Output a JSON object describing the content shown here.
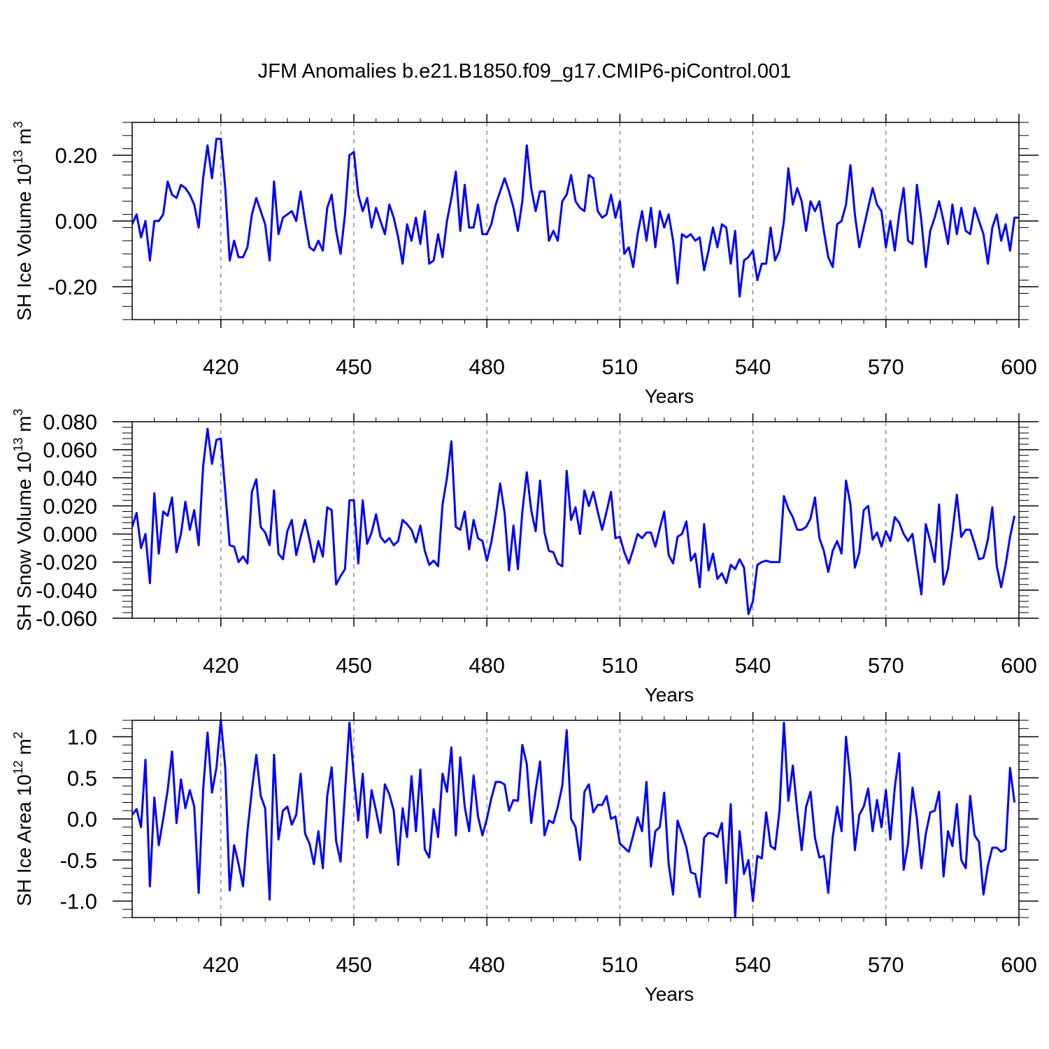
{
  "figure": {
    "title": "JFM Anomalies b.e21.B1850.f09_g17.CMIP6-piControl.001"
  },
  "colors": {
    "line": "#0000ff",
    "axis": "#000000",
    "grid": "#777777"
  },
  "chart_data": [
    {
      "type": "line",
      "title": "",
      "xlabel": "Years",
      "ylabel_main": "SH Ice Volume 10",
      "ylabel_exp": "13",
      "ylabel_unit": " m",
      "ylabel_unit_exp": "3",
      "xlim": [
        400,
        600
      ],
      "ylim": [
        -0.3,
        0.3
      ],
      "xticks": [
        420,
        450,
        480,
        510,
        540,
        570,
        600
      ],
      "xtick_labels": [
        "420",
        "450",
        "480",
        "510",
        "540",
        "570",
        "600"
      ],
      "yticks": [
        -0.2,
        0.0,
        0.2
      ],
      "ytick_labels": [
        "-0.20",
        "0.00",
        "0.20"
      ],
      "x_start": 400,
      "series": [
        {
          "name": "SH Ice Volume",
          "values": [
            -0.01,
            0.02,
            -0.05,
            0.0,
            -0.12,
            0.0,
            0.0,
            0.02,
            0.12,
            0.08,
            0.07,
            0.11,
            0.1,
            0.08,
            0.05,
            -0.02,
            0.13,
            0.23,
            0.13,
            0.25,
            0.25,
            0.1,
            -0.12,
            -0.06,
            -0.11,
            -0.11,
            -0.08,
            0.02,
            0.07,
            0.03,
            -0.01,
            -0.12,
            0.12,
            -0.04,
            0.01,
            0.02,
            0.03,
            0.0,
            0.09,
            0.0,
            -0.08,
            -0.09,
            -0.06,
            -0.09,
            0.04,
            0.08,
            -0.03,
            -0.1,
            0.02,
            0.2,
            0.21,
            0.08,
            0.03,
            0.07,
            -0.02,
            0.04,
            0.0,
            -0.04,
            0.05,
            0.01,
            -0.05,
            -0.13,
            -0.01,
            -0.06,
            0.01,
            -0.07,
            0.03,
            -0.13,
            -0.12,
            -0.04,
            -0.11,
            0.0,
            0.07,
            0.15,
            -0.03,
            0.11,
            -0.02,
            -0.02,
            0.05,
            -0.04,
            -0.04,
            -0.01,
            0.05,
            0.09,
            0.13,
            0.09,
            0.04,
            -0.03,
            0.06,
            0.23,
            0.1,
            0.03,
            0.09,
            0.09,
            -0.06,
            -0.03,
            -0.06,
            0.06,
            0.08,
            0.14,
            0.06,
            0.04,
            0.03,
            0.14,
            0.13,
            0.03,
            0.01,
            0.02,
            0.08,
            0.01,
            0.06,
            -0.1,
            -0.08,
            -0.14,
            -0.04,
            0.03,
            -0.06,
            0.04,
            -0.08,
            0.03,
            -0.02,
            0.02,
            -0.06,
            -0.19,
            -0.04,
            -0.05,
            -0.04,
            -0.06,
            -0.05,
            -0.15,
            -0.09,
            -0.02,
            -0.08,
            -0.01,
            -0.02,
            -0.13,
            -0.03,
            -0.23,
            -0.12,
            -0.11,
            -0.09,
            -0.18,
            -0.13,
            -0.13,
            -0.02,
            -0.12,
            -0.09,
            0.0,
            0.16,
            0.05,
            0.1,
            0.06,
            -0.03,
            0.06,
            0.03,
            0.06,
            -0.03,
            -0.11,
            -0.14,
            -0.01,
            0.0,
            0.05,
            0.17,
            0.02,
            -0.08,
            -0.02,
            0.04,
            0.1,
            0.05,
            0.03,
            -0.08,
            0.0,
            -0.09,
            0.02,
            0.1,
            -0.06,
            -0.07,
            0.11,
            0.0,
            -0.14,
            -0.03,
            0.01,
            0.06,
            0.0,
            -0.07,
            0.05,
            -0.04,
            0.04,
            -0.03,
            -0.04,
            0.04,
            0.0,
            -0.04,
            -0.13,
            -0.02,
            0.02,
            -0.06,
            -0.01,
            -0.09,
            0.01,
            0.01
          ]
        }
      ]
    },
    {
      "type": "line",
      "title": "",
      "xlabel": "Years",
      "ylabel_main": "SH Snow Volume 10",
      "ylabel_exp": "13",
      "ylabel_unit": " m",
      "ylabel_unit_exp": "3",
      "xlim": [
        400,
        600
      ],
      "ylim": [
        -0.06,
        0.08
      ],
      "xticks": [
        420,
        450,
        480,
        510,
        540,
        570,
        600
      ],
      "xtick_labels": [
        "420",
        "450",
        "480",
        "510",
        "540",
        "570",
        "600"
      ],
      "yticks": [
        -0.06,
        -0.04,
        -0.02,
        0.0,
        0.02,
        0.04,
        0.06,
        0.08
      ],
      "ytick_labels": [
        "-0.060",
        "-0.040",
        "-0.020",
        "0.000",
        "0.020",
        "0.040",
        "0.060",
        "0.080"
      ],
      "x_start": 400,
      "series": [
        {
          "name": "SH Snow Volume",
          "values": [
            0.005,
            0.015,
            -0.01,
            0.0,
            -0.035,
            0.029,
            -0.014,
            0.016,
            0.013,
            0.026,
            -0.013,
            0.0,
            0.023,
            0.003,
            0.017,
            -0.008,
            0.048,
            0.075,
            0.05,
            0.067,
            0.068,
            0.03,
            -0.008,
            -0.009,
            -0.02,
            -0.016,
            -0.021,
            0.03,
            0.039,
            0.005,
            0.001,
            -0.008,
            0.031,
            -0.014,
            -0.018,
            0.002,
            0.01,
            -0.015,
            -0.002,
            0.01,
            -0.004,
            -0.02,
            -0.005,
            -0.016,
            0.019,
            0.017,
            -0.036,
            -0.03,
            -0.025,
            0.024,
            0.024,
            -0.021,
            0.024,
            -0.007,
            0.001,
            0.014,
            -0.002,
            -0.006,
            -0.003,
            -0.008,
            -0.005,
            0.01,
            0.007,
            0.003,
            -0.006,
            0.006,
            -0.012,
            -0.022,
            -0.019,
            -0.023,
            0.021,
            0.04,
            0.066,
            0.005,
            0.003,
            0.016,
            -0.011,
            0.01,
            -0.003,
            -0.005,
            -0.019,
            -0.006,
            0.013,
            0.036,
            0.015,
            -0.026,
            0.006,
            -0.025,
            0.016,
            0.044,
            0.017,
            0.002,
            0.038,
            0.001,
            -0.012,
            -0.013,
            -0.021,
            -0.023,
            0.045,
            0.01,
            0.019,
            0.0,
            0.031,
            0.02,
            0.03,
            0.016,
            0.003,
            0.016,
            0.03,
            -0.003,
            -0.002,
            -0.013,
            -0.021,
            -0.011,
            0.0,
            -0.003,
            0.001,
            0.001,
            -0.009,
            0.004,
            0.016,
            -0.015,
            -0.021,
            -0.002,
            0.0,
            0.009,
            -0.019,
            -0.014,
            -0.038,
            0.007,
            -0.026,
            -0.014,
            -0.032,
            -0.028,
            -0.035,
            -0.022,
            -0.025,
            -0.018,
            -0.024,
            -0.057,
            -0.048,
            -0.022,
            -0.02,
            -0.019,
            -0.02,
            -0.02,
            -0.02,
            0.027,
            0.018,
            0.012,
            0.003,
            0.003,
            0.005,
            0.011,
            0.026,
            -0.003,
            -0.012,
            -0.027,
            -0.012,
            -0.005,
            -0.014,
            0.038,
            0.021,
            -0.024,
            -0.013,
            0.017,
            0.02,
            -0.004,
            0.001,
            -0.009,
            0.002,
            -0.005,
            0.012,
            0.008,
            0.0,
            -0.005,
            0.0,
            -0.022,
            -0.043,
            0.007,
            -0.005,
            -0.02,
            0.021,
            -0.036,
            -0.025,
            0.001,
            0.028,
            -0.002,
            0.003,
            0.003,
            -0.007,
            -0.018,
            -0.017,
            -0.004,
            0.019,
            -0.023,
            -0.038,
            -0.022,
            -0.002,
            0.013
          ]
        }
      ]
    },
    {
      "type": "line",
      "title": "",
      "xlabel": "Years",
      "ylabel_main": "SH Ice Area 10",
      "ylabel_exp": "12",
      "ylabel_unit": " m",
      "ylabel_unit_exp": "2",
      "xlim": [
        400,
        600
      ],
      "ylim": [
        -1.2,
        1.2
      ],
      "xticks": [
        420,
        450,
        480,
        510,
        540,
        570,
        600
      ],
      "xtick_labels": [
        "420",
        "450",
        "480",
        "510",
        "540",
        "570",
        "600"
      ],
      "yticks": [
        -1.0,
        -0.5,
        0.0,
        0.5,
        1.0
      ],
      "ytick_labels": [
        "-1.0",
        "-0.5",
        "0.0",
        "0.5",
        "1.0"
      ],
      "x_start": 400,
      "series": [
        {
          "name": "SH Ice Area",
          "values": [
            0.05,
            0.12,
            -0.1,
            0.72,
            -0.82,
            0.26,
            -0.32,
            0.0,
            0.35,
            0.82,
            -0.05,
            0.48,
            0.13,
            0.35,
            0.15,
            -0.9,
            0.35,
            1.05,
            0.32,
            0.62,
            1.2,
            0.62,
            -0.87,
            -0.32,
            -0.55,
            -0.82,
            -0.15,
            0.35,
            0.78,
            0.28,
            0.13,
            -0.98,
            0.78,
            -0.25,
            0.1,
            0.15,
            -0.07,
            0.05,
            0.55,
            -0.18,
            -0.3,
            -0.55,
            -0.15,
            -0.6,
            0.28,
            0.63,
            -0.27,
            -0.52,
            0.32,
            1.17,
            0.52,
            -0.02,
            0.55,
            -0.23,
            0.35,
            0.1,
            -0.17,
            0.42,
            0.3,
            0.1,
            -0.56,
            0.13,
            -0.22,
            0.52,
            -0.15,
            0.6,
            -0.37,
            -0.47,
            0.12,
            -0.22,
            0.55,
            0.33,
            0.87,
            -0.2,
            0.75,
            0.15,
            -0.15,
            0.53,
            0.03,
            -0.2,
            0.0,
            0.25,
            0.45,
            0.45,
            0.42,
            0.1,
            0.23,
            0.22,
            0.9,
            0.67,
            -0.05,
            0.35,
            0.7,
            -0.2,
            -0.02,
            -0.05,
            0.15,
            0.4,
            1.08,
            0.0,
            -0.1,
            -0.5,
            0.33,
            0.42,
            0.08,
            0.17,
            0.17,
            0.28,
            0.0,
            0.03,
            -0.3,
            -0.35,
            -0.4,
            -0.2,
            0.02,
            -0.15,
            0.45,
            -0.58,
            -0.15,
            -0.1,
            0.32,
            -0.55,
            -0.92,
            -0.02,
            -0.18,
            -0.35,
            -0.65,
            -0.67,
            -0.95,
            -0.23,
            -0.17,
            -0.18,
            -0.22,
            -0.05,
            -0.78,
            0.18,
            -1.2,
            -0.15,
            -0.67,
            -0.5,
            -1.0,
            -0.45,
            -0.48,
            0.08,
            -0.33,
            -0.37,
            0.1,
            1.17,
            0.22,
            0.65,
            0.1,
            -0.38,
            0.15,
            0.33,
            -0.23,
            -0.47,
            -0.45,
            -0.9,
            -0.22,
            0.15,
            -0.15,
            1.0,
            0.48,
            -0.38,
            0.05,
            0.15,
            0.37,
            -0.15,
            0.23,
            -0.1,
            0.35,
            -0.25,
            0.38,
            0.8,
            -0.62,
            -0.3,
            0.38,
            0.0,
            -0.6,
            -0.18,
            0.08,
            0.1,
            0.33,
            -0.7,
            -0.15,
            -0.33,
            0.18,
            -0.5,
            -0.6,
            0.28,
            -0.2,
            -0.28,
            -0.92,
            -0.57,
            -0.35,
            -0.35,
            -0.4,
            -0.37,
            0.62,
            0.2
          ]
        }
      ]
    }
  ]
}
